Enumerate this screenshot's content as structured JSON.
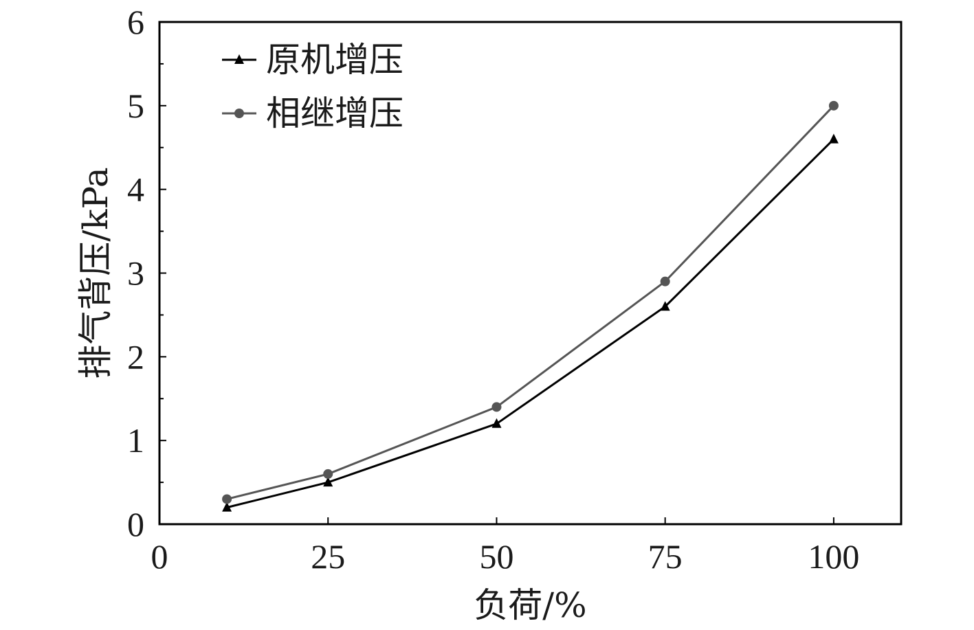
{
  "chart_data": {
    "type": "line",
    "xlabel": "负荷/%",
    "ylabel": "排气背压/kPa",
    "xlim": [
      0,
      110
    ],
    "ylim": [
      0,
      6
    ],
    "xticks": [
      0,
      25,
      50,
      75,
      100
    ],
    "yticks": [
      0,
      1,
      2,
      3,
      4,
      5,
      6
    ],
    "grid": false,
    "legend_position": "top-left",
    "x": [
      10,
      25,
      50,
      75,
      100
    ],
    "series": [
      {
        "name": "原机增压",
        "values": [
          0.2,
          0.5,
          1.2,
          2.6,
          4.6
        ],
        "color": "#000000",
        "marker": "triangle"
      },
      {
        "name": "相继增压",
        "values": [
          0.3,
          0.6,
          1.4,
          2.9,
          5.0
        ],
        "color": "#555555",
        "marker": "circle"
      }
    ]
  }
}
